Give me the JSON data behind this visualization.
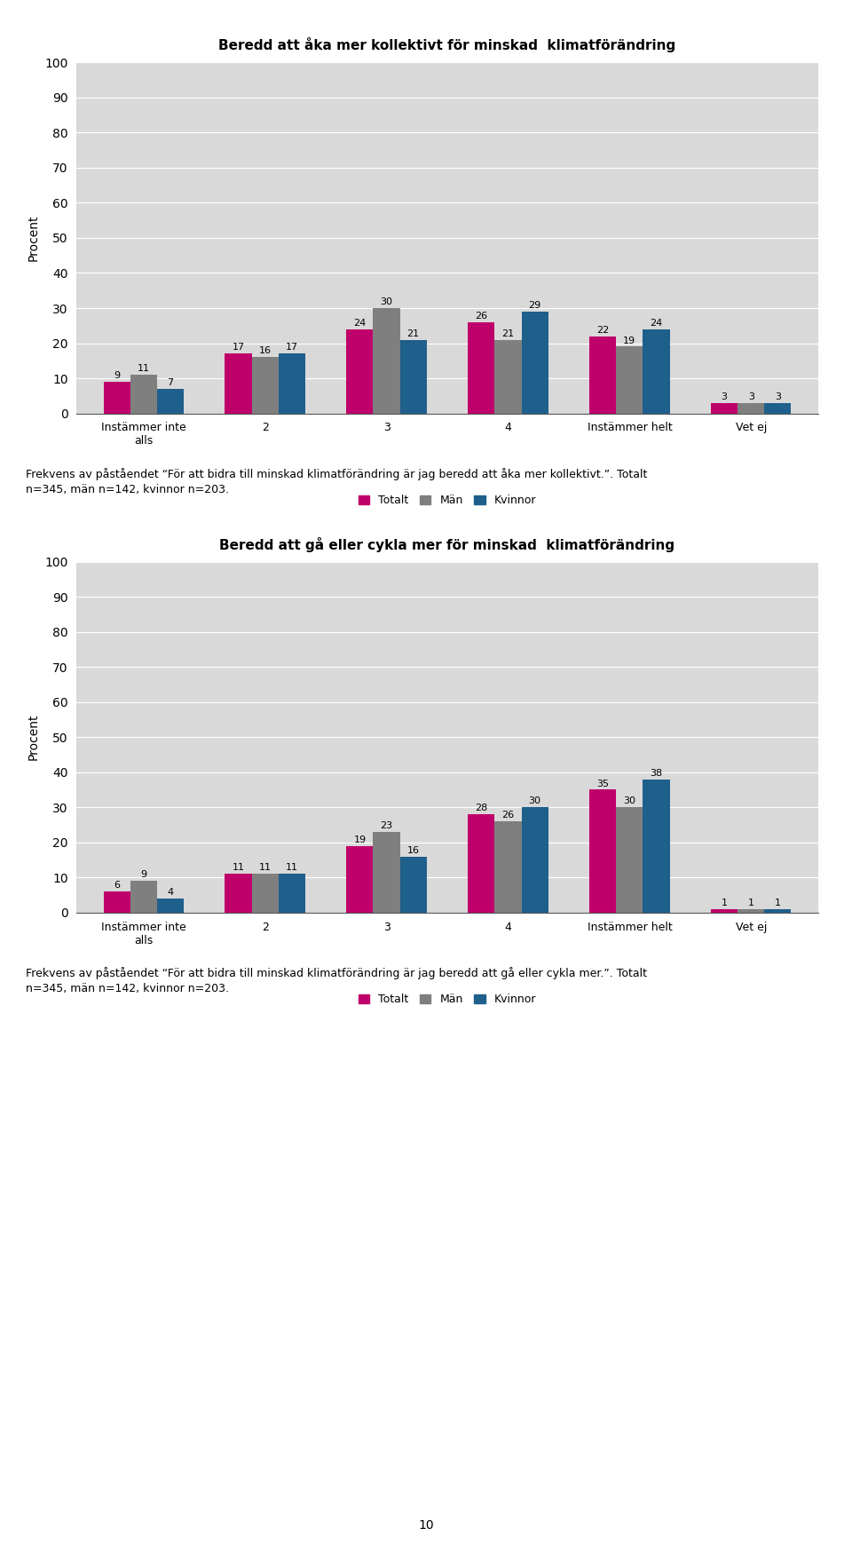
{
  "chart1": {
    "title": "Beredd att åka mer kollektivt för minskad  klimatförändring",
    "categories": [
      "Instämmer inte\nalls",
      "2",
      "3",
      "4",
      "Instämmer helt",
      "Vet ej"
    ],
    "totalt": [
      9,
      17,
      24,
      26,
      22,
      3
    ],
    "man": [
      11,
      16,
      30,
      21,
      19,
      3
    ],
    "kvinnor": [
      7,
      17,
      21,
      29,
      24,
      3
    ],
    "ylabel": "Procent",
    "ylim": [
      0,
      100
    ],
    "yticks": [
      0,
      10,
      20,
      30,
      40,
      50,
      60,
      70,
      80,
      90,
      100
    ]
  },
  "chart2": {
    "title": "Beredd att gå eller cykla mer för minskad  klimatförändring",
    "categories": [
      "Instämmer inte\nalls",
      "2",
      "3",
      "4",
      "Instämmer helt",
      "Vet ej"
    ],
    "totalt": [
      6,
      11,
      19,
      28,
      35,
      1
    ],
    "man": [
      9,
      11,
      23,
      26,
      30,
      1
    ],
    "kvinnor": [
      4,
      11,
      16,
      30,
      38,
      1
    ],
    "ylabel": "Procent",
    "ylim": [
      0,
      100
    ],
    "yticks": [
      0,
      10,
      20,
      30,
      40,
      50,
      60,
      70,
      80,
      90,
      100
    ]
  },
  "caption1": "Frekvens av påståendet “För att bidra till minskad klimatförändring är jag beredd att åka mer kollektivt.”. Totalt\nn=345, män n=142, kvinnor n=203.",
  "caption2": "Frekvens av påståendet “För att bidra till minskad klimatförändring är jag beredd att gå eller cykla mer.”. Totalt\nn=345, män n=142, kvinnor n=203.",
  "page_number": "10",
  "color_totalt": "#C0006A",
  "color_man": "#7F7F7F",
  "color_kvinnor": "#1F5F8B",
  "legend_labels": [
    "Totalt",
    "Män",
    "Kvinnor"
  ],
  "bar_width": 0.22,
  "background_color": "#D9D9D9",
  "fig_background": "#FFFFFF"
}
